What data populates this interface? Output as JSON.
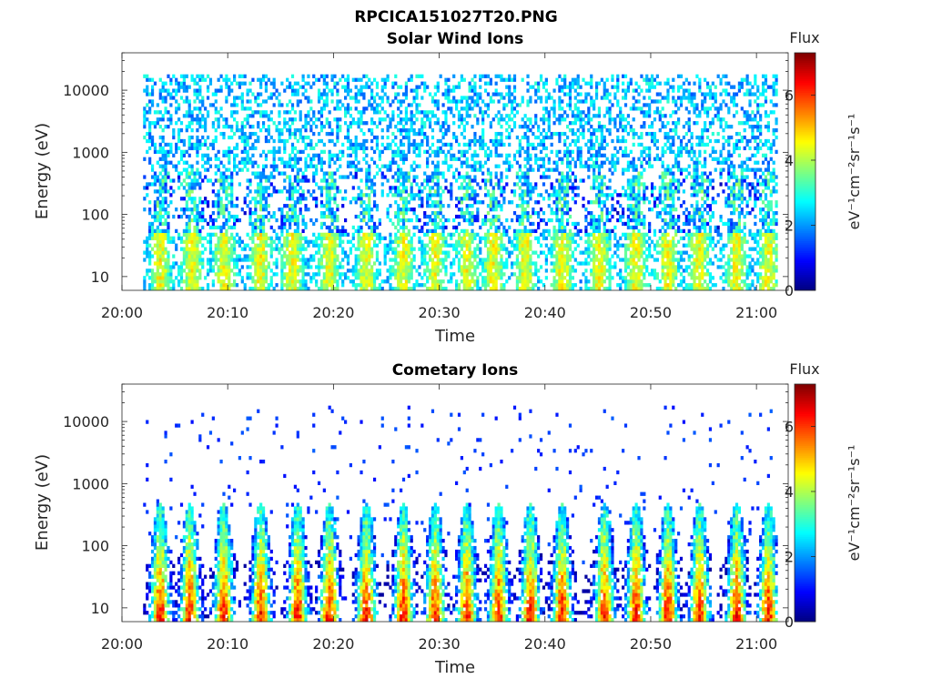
{
  "figure_title": "RPCICA151027T20.PNG",
  "colormap": [
    "#00007f",
    "#0000ff",
    "#007fff",
    "#00ffff",
    "#7fff7f",
    "#ffff00",
    "#ff7f00",
    "#ff0000",
    "#7f0000"
  ],
  "chart_data": [
    {
      "type": "heatmap",
      "title": "Solar Wind Ions",
      "xlabel": "Time",
      "ylabel": "Energy (eV)",
      "y_scale": "log",
      "ylim": [
        6,
        40000
      ],
      "xlim": [
        "20:00",
        "21:03"
      ],
      "x_ticks": [
        "20:00",
        "20:10",
        "20:20",
        "20:30",
        "20:40",
        "20:50",
        "21:00"
      ],
      "y_ticks": [
        "10",
        "100",
        "1000",
        "10000"
      ],
      "data_time_range": [
        "20:02",
        "21:02"
      ],
      "colorbar": {
        "label_top": "Flux",
        "label_side": "eV⁻¹cm⁻²sr⁻¹s⁻¹",
        "range": [
          0,
          7.3
        ],
        "ticks": [
          "0",
          "2",
          "4",
          "6"
        ]
      },
      "burst_minutes": [
        3.5,
        6.5,
        9.5,
        13,
        16,
        19.5,
        23,
        26.5,
        29.5,
        32.5,
        35,
        38,
        41.5,
        45,
        48.5,
        51.5,
        54.5,
        58,
        61
      ],
      "description_values": {
        "low_energy_peak_flux": 5,
        "high_energy_background_flux": 1.5
      }
    },
    {
      "type": "heatmap",
      "title": "Cometary Ions",
      "xlabel": "Time",
      "ylabel": "Energy (eV)",
      "y_scale": "log",
      "ylim": [
        6,
        40000
      ],
      "xlim": [
        "20:00",
        "21:03"
      ],
      "x_ticks": [
        "20:00",
        "20:10",
        "20:20",
        "20:30",
        "20:40",
        "20:50",
        "21:00"
      ],
      "y_ticks": [
        "10",
        "100",
        "1000",
        "10000"
      ],
      "data_time_range": [
        "20:02",
        "21:02"
      ],
      "colorbar": {
        "label_top": "Flux",
        "label_side": "eV⁻¹cm⁻²sr⁻¹s⁻¹",
        "range": [
          0,
          7.3
        ],
        "ticks": [
          "0",
          "2",
          "4",
          "6"
        ]
      },
      "burst_minutes": [
        3.5,
        6.3,
        9.5,
        13,
        16.5,
        19.5,
        23,
        26.5,
        29.5,
        32.5,
        35.5,
        38.5,
        41.5,
        45.5,
        48.5,
        51.5,
        54.5,
        58,
        61
      ],
      "description_values": {
        "low_energy_peak_flux": 6.8,
        "high_energy_background_flux": 1
      }
    }
  ]
}
